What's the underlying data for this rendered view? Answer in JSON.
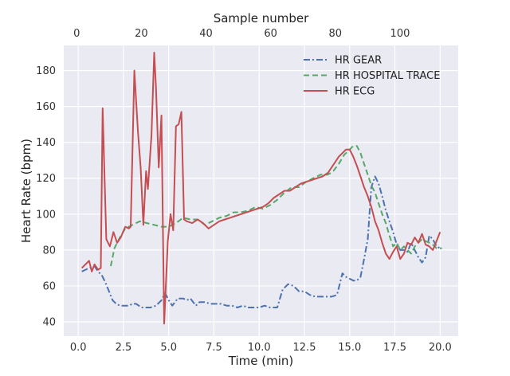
{
  "chart_data": {
    "type": "line",
    "xlabel": "Time (min)",
    "ylabel": "Heart Rate (bpm)",
    "top_xlabel": "Sample number",
    "xlim": [
      -0.8,
      21.0
    ],
    "ylim": [
      32,
      194
    ],
    "top_xlim": [
      -4.0,
      118.0
    ],
    "x_ticks": [
      "0.0",
      "2.5",
      "5.0",
      "7.5",
      "10.0",
      "12.5",
      "15.0",
      "17.5",
      "20.0"
    ],
    "y_ticks": [
      "40",
      "60",
      "80",
      "100",
      "120",
      "140",
      "160",
      "180"
    ],
    "top_ticks": [
      "0",
      "20",
      "40",
      "60",
      "80",
      "100"
    ],
    "grid": true,
    "background": "#EAEAF2",
    "legend_position": "top-right",
    "series": [
      {
        "name": "HR GEAR",
        "color": "#4C72B0",
        "style": "dashdot",
        "x": [
          0.2,
          0.6,
          0.9,
          1.1,
          1.3,
          1.5,
          1.7,
          1.9,
          2.1,
          2.3,
          2.6,
          2.8,
          3.0,
          3.2,
          3.5,
          3.7,
          4.0,
          4.3,
          4.6,
          4.8,
          5.0,
          5.2,
          5.5,
          5.8,
          6.0,
          6.2,
          6.5,
          6.7,
          7.0,
          7.3,
          7.6,
          7.9,
          8.2,
          8.5,
          8.8,
          9.1,
          9.4,
          9.7,
          10.0,
          10.3,
          10.6,
          10.8,
          11.0,
          11.3,
          11.6,
          11.9,
          12.2,
          12.5,
          12.8,
          13.1,
          13.4,
          13.7,
          14.0,
          14.3,
          14.6,
          14.8,
          15.0,
          15.2,
          15.4,
          15.6,
          15.8,
          16.0,
          16.2,
          16.4,
          16.6,
          16.8,
          17.0,
          17.2,
          17.4,
          17.6,
          17.8,
          18.0,
          18.2,
          18.4,
          18.6,
          18.8,
          19.0,
          19.2,
          19.4,
          19.6,
          19.8,
          20.0
        ],
        "y": [
          68,
          70,
          71,
          68,
          66,
          62,
          57,
          52,
          50,
          49,
          49,
          49,
          50,
          50,
          48,
          48,
          48,
          49,
          52,
          56,
          52,
          49,
          53,
          53,
          52,
          53,
          49,
          51,
          51,
          50,
          50,
          50,
          49,
          49,
          48,
          49,
          48,
          48,
          48,
          49,
          48,
          48,
          48,
          58,
          61,
          60,
          57,
          57,
          55,
          54,
          54,
          54,
          54,
          55,
          67,
          65,
          64,
          63,
          63,
          65,
          75,
          86,
          115,
          121,
          117,
          110,
          102,
          96,
          90,
          83,
          80,
          80,
          79,
          84,
          80,
          76,
          73,
          76,
          88,
          86,
          82,
          81
        ]
      },
      {
        "name": "HR HOSPITAL TRACE",
        "color": "#55A868",
        "style": "dashed",
        "x": [
          1.8,
          2.0,
          2.3,
          2.6,
          3.0,
          3.4,
          3.8,
          4.2,
          4.6,
          5.0,
          5.4,
          5.8,
          6.2,
          6.6,
          7.0,
          7.4,
          7.8,
          8.2,
          8.6,
          9.0,
          9.4,
          9.8,
          10.2,
          10.6,
          11.0,
          11.4,
          11.8,
          12.2,
          12.6,
          13.0,
          13.4,
          13.8,
          14.1,
          14.4,
          14.7,
          15.0,
          15.2,
          15.4,
          15.6,
          15.8,
          16.0,
          16.2,
          16.4,
          16.6,
          16.8,
          17.0,
          17.2,
          17.4,
          17.6,
          17.8,
          18.0,
          18.2,
          18.4,
          18.6,
          18.8,
          19.0,
          19.2,
          19.4,
          19.6,
          19.8,
          20.1
        ],
        "y": [
          71,
          81,
          87,
          92,
          94,
          96,
          95,
          94,
          93,
          93,
          95,
          98,
          97,
          97,
          94,
          96,
          98,
          99,
          101,
          101,
          102,
          104,
          103,
          105,
          108,
          112,
          115,
          115,
          118,
          120,
          122,
          122,
          124,
          128,
          133,
          136,
          138,
          138,
          134,
          128,
          122,
          116,
          112,
          106,
          100,
          95,
          88,
          82,
          84,
          80,
          82,
          80,
          78,
          82,
          84,
          86,
          85,
          84,
          83,
          81,
          81
        ]
      },
      {
        "name": "HR ECG",
        "color": "#C44E52",
        "style": "solid",
        "x": [
          0.2,
          0.4,
          0.6,
          0.75,
          0.9,
          1.1,
          1.25,
          1.35,
          1.55,
          1.75,
          1.95,
          2.15,
          2.35,
          2.6,
          2.8,
          2.9,
          3.1,
          3.3,
          3.45,
          3.6,
          3.75,
          3.85,
          4.05,
          4.2,
          4.3,
          4.45,
          4.6,
          4.75,
          4.95,
          5.1,
          5.25,
          5.4,
          5.55,
          5.7,
          5.85,
          6.0,
          6.3,
          6.6,
          6.9,
          7.2,
          7.5,
          7.8,
          8.1,
          8.4,
          8.7,
          9.0,
          9.3,
          9.6,
          9.9,
          10.2,
          10.5,
          10.8,
          11.1,
          11.4,
          11.7,
          12.0,
          12.3,
          12.6,
          12.9,
          13.2,
          13.5,
          13.8,
          14.0,
          14.2,
          14.4,
          14.6,
          14.8,
          15.0,
          15.2,
          15.4,
          15.6,
          15.8,
          16.0,
          16.2,
          16.4,
          16.6,
          16.8,
          17.0,
          17.2,
          17.4,
          17.6,
          17.8,
          18.0,
          18.2,
          18.4,
          18.6,
          18.8,
          19.0,
          19.2,
          19.4,
          19.6,
          19.8,
          20.0
        ],
        "y": [
          70,
          72,
          74,
          68,
          72,
          69,
          70,
          159,
          86,
          82,
          90,
          84,
          87,
          93,
          92,
          93,
          180,
          146,
          126,
          94,
          124,
          114,
          144,
          190,
          170,
          126,
          155,
          39,
          85,
          100,
          91,
          149,
          150,
          157,
          97,
          96,
          95,
          97,
          95,
          92,
          94,
          96,
          97,
          98,
          99,
          100,
          101,
          102,
          103,
          104,
          106,
          109,
          111,
          113,
          113,
          115,
          117,
          118,
          119,
          120,
          121,
          123,
          126,
          129,
          132,
          134,
          136,
          136,
          132,
          127,
          121,
          115,
          110,
          104,
          96,
          91,
          84,
          78,
          75,
          79,
          82,
          75,
          78,
          84,
          83,
          87,
          84,
          89,
          83,
          82,
          80,
          85,
          90
        ]
      }
    ]
  }
}
